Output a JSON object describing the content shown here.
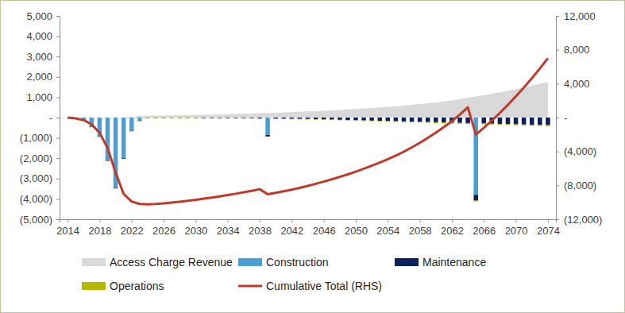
{
  "chart_data": {
    "type": "bar",
    "stacked": true,
    "grid": false,
    "legend": "bottom",
    "x": [
      2014,
      2015,
      2016,
      2017,
      2018,
      2019,
      2020,
      2021,
      2022,
      2023,
      2024,
      2025,
      2026,
      2027,
      2028,
      2029,
      2030,
      2031,
      2032,
      2033,
      2034,
      2035,
      2036,
      2037,
      2038,
      2039,
      2040,
      2041,
      2042,
      2043,
      2044,
      2045,
      2046,
      2047,
      2048,
      2049,
      2050,
      2051,
      2052,
      2053,
      2054,
      2055,
      2056,
      2057,
      2058,
      2059,
      2060,
      2061,
      2062,
      2063,
      2064,
      2065,
      2066,
      2067,
      2068,
      2069,
      2070,
      2071,
      2072,
      2073,
      2074
    ],
    "xlim": [
      2013,
      2075
    ],
    "xticks": [
      2014,
      2018,
      2022,
      2026,
      2030,
      2034,
      2038,
      2042,
      2046,
      2050,
      2054,
      2058,
      2062,
      2066,
      2070,
      2074
    ],
    "ylim": [
      -5000,
      5000
    ],
    "yticks": [
      {
        "value": -5000,
        "label": "(5,000)"
      },
      {
        "value": -4000,
        "label": "(4,000)"
      },
      {
        "value": -3000,
        "label": "(3,000)"
      },
      {
        "value": -2000,
        "label": "(2,000)"
      },
      {
        "value": -1000,
        "label": "(1,000)"
      },
      {
        "value": 0,
        "label": "-"
      },
      {
        "value": 1000,
        "label": "1,000"
      },
      {
        "value": 2000,
        "label": "2,000"
      },
      {
        "value": 3000,
        "label": "3,000"
      },
      {
        "value": 4000,
        "label": "4,000"
      },
      {
        "value": 5000,
        "label": "5,000"
      }
    ],
    "y2lim": [
      -12000,
      12000
    ],
    "y2ticks": [
      {
        "value": -12000,
        "label": "(12,000)"
      },
      {
        "value": -8000,
        "label": "(8,000)"
      },
      {
        "value": -4000,
        "label": "(4,000)"
      },
      {
        "value": 0,
        "label": "-"
      },
      {
        "value": 4000,
        "label": "4,000"
      },
      {
        "value": 8000,
        "label": "8,000"
      },
      {
        "value": 12000,
        "label": "12,000"
      }
    ],
    "series": [
      {
        "name": "Access Charge Revenue",
        "type": "area",
        "color": "#d9d9d9",
        "values": [
          0,
          0,
          0,
          0,
          0,
          0,
          0,
          0,
          40,
          80,
          90,
          95,
          100,
          110,
          115,
          120,
          130,
          140,
          150,
          155,
          165,
          175,
          185,
          200,
          210,
          220,
          235,
          250,
          265,
          280,
          300,
          315,
          335,
          355,
          375,
          400,
          420,
          445,
          470,
          500,
          530,
          560,
          590,
          625,
          665,
          700,
          745,
          790,
          840,
          910,
          980,
          1040,
          1100,
          1170,
          1240,
          1320,
          1400,
          1480,
          1570,
          1660,
          1750
        ]
      },
      {
        "name": "Construction",
        "type": "bar",
        "color": "#4b9fd5",
        "values": [
          0,
          -30,
          -100,
          -450,
          -900,
          -2100,
          -3450,
          -2000,
          -650,
          -150,
          0,
          0,
          0,
          0,
          0,
          0,
          0,
          0,
          0,
          0,
          0,
          0,
          0,
          0,
          0,
          -850,
          0,
          0,
          0,
          0,
          0,
          0,
          0,
          0,
          0,
          0,
          0,
          0,
          0,
          0,
          0,
          0,
          0,
          0,
          0,
          0,
          0,
          0,
          0,
          0,
          0,
          -3800,
          0,
          0,
          0,
          0,
          0,
          0,
          0,
          0,
          0
        ]
      },
      {
        "name": "Maintenance",
        "type": "bar",
        "color": "#0d1f5c",
        "values": [
          0,
          0,
          -10,
          -20,
          -30,
          -30,
          -30,
          -30,
          -20,
          -20,
          -20,
          -20,
          -20,
          -20,
          -20,
          -20,
          -20,
          -30,
          -30,
          -30,
          -30,
          -30,
          -30,
          -30,
          -40,
          -80,
          -50,
          -55,
          -60,
          -65,
          -70,
          -80,
          -90,
          -100,
          -110,
          -120,
          -130,
          -140,
          -150,
          -160,
          -170,
          -180,
          -190,
          -200,
          -210,
          -220,
          -230,
          -240,
          -250,
          -260,
          -270,
          -280,
          -290,
          -300,
          -310,
          -320,
          -330,
          -340,
          -350,
          -360,
          -370
        ]
      },
      {
        "name": "Operations",
        "type": "bar",
        "color": "#b5b800",
        "values": [
          0,
          0,
          0,
          -10,
          -10,
          -10,
          -10,
          -10,
          -10,
          -20,
          -20,
          -20,
          -20,
          -20,
          -20,
          -20,
          -20,
          -20,
          -20,
          -20,
          -20,
          -20,
          -20,
          -20,
          -20,
          -20,
          -25,
          -25,
          -25,
          -25,
          -25,
          -25,
          -25,
          -25,
          -25,
          -25,
          -35,
          -35,
          -35,
          -35,
          -35,
          -35,
          -35,
          -35,
          -35,
          -35,
          -45,
          -45,
          -45,
          -45,
          -45,
          -45,
          -45,
          -45,
          -45,
          -45,
          -55,
          -55,
          -55,
          -55,
          -55
        ]
      },
      {
        "name": "Cumulative Total (RHS)",
        "type": "line",
        "axis": "y2",
        "color": "#c0392b",
        "values": [
          0,
          -100,
          -300,
          -800,
          -1800,
          -3600,
          -6500,
          -9000,
          -9900,
          -10200,
          -10250,
          -10200,
          -10120,
          -10030,
          -9930,
          -9820,
          -9700,
          -9570,
          -9440,
          -9300,
          -9150,
          -8990,
          -8820,
          -8640,
          -8450,
          -9050,
          -8880,
          -8700,
          -8500,
          -8290,
          -8060,
          -7820,
          -7560,
          -7290,
          -7000,
          -6700,
          -6380,
          -6040,
          -5680,
          -5300,
          -4900,
          -4480,
          -4030,
          -3520,
          -2980,
          -2400,
          -1780,
          -1120,
          -420,
          360,
          1200,
          -2000,
          -1200,
          -350,
          550,
          1500,
          2500,
          3550,
          4650,
          5800,
          7000
        ]
      }
    ]
  }
}
